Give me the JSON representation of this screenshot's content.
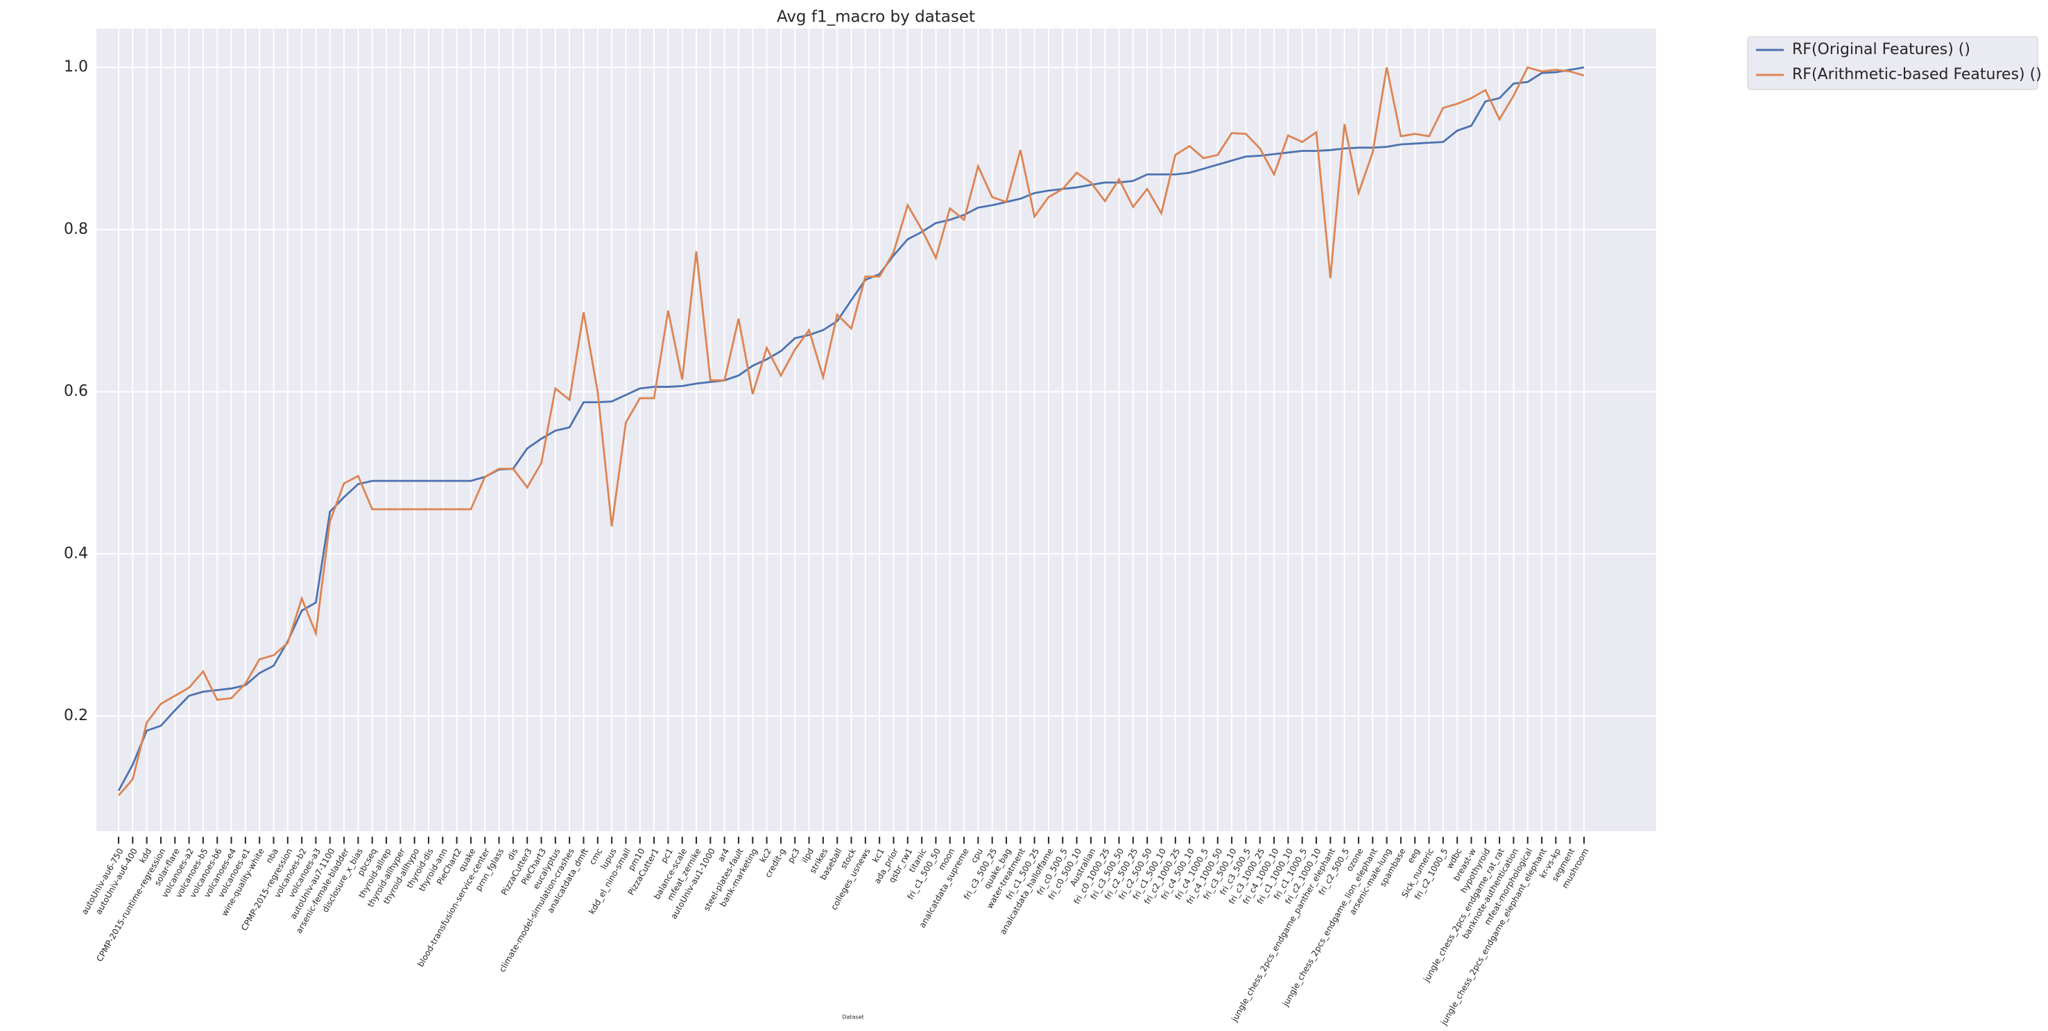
{
  "chart_data": {
    "type": "line",
    "title": "Avg f1_macro by dataset",
    "x_label": "Dataset",
    "categories": [
      "autoUniv-au6-750",
      "autoUniv-au6-400",
      "kdd",
      "CPMP-2015-runtime-regression",
      "solar-flare",
      "volcanoes-a2",
      "volcanoes-b5",
      "volcanoes-b6",
      "volcanoes-e4",
      "volcanoes-e1",
      "wine-quality-white",
      "nba",
      "CPMP-2015-regression",
      "volcanoes-b2",
      "volcanoes-a3",
      "autoUniv-au7-1100",
      "arsenic-female-bladder",
      "disclosure_x_bias",
      "pbcseq",
      "thyroid-allrep",
      "thyroid-allhyper",
      "thyroid-allhypo",
      "thyroid-dis",
      "thyroid-ann",
      "PieChart2",
      "quake",
      "blood-transfusion-service-center",
      "prnn_fglass",
      "dis",
      "PizzaCutter3",
      "PieChart3",
      "eucalyptus",
      "climate-model-simulation-crashes",
      "analcatdata_dmft",
      "cmc",
      "lupus",
      "kdd_el_nino-small",
      "pm10",
      "PizzaCutter1",
      "pc1",
      "balance-scale",
      "mfeat_zernike",
      "autoUniv-au1-1000",
      "ar4",
      "steel-plates-fault",
      "bank-marketing",
      "kc2",
      "credit-g",
      "pc3",
      "ilpd",
      "strikes",
      "baseball",
      "stock",
      "colleges_usnews",
      "kc1",
      "ada_prior",
      "qsbr_rw1",
      "titanic",
      "fri_c1_500_50",
      "moon",
      "analcatdata_supreme",
      "cpu",
      "fri_c3_500_25",
      "quake_bag",
      "water-treatment",
      "fri_c1_500_25",
      "analcatdata_halloffame",
      "fri_c0_500_5",
      "fri_c0_500_10",
      "Australian",
      "fri_c0_1000_25",
      "fri_c3_500_50",
      "fri_c2_500_25",
      "fri_c2_500_50",
      "fri_c1_500_10",
      "fri_c2_1000_25",
      "fri_c4_500_10",
      "fri_c4_1000_5",
      "fri_c4_1000_50",
      "fri_c3_500_10",
      "fri_c3_500_5",
      "fri_c3_1000_25",
      "fri_c4_1000_10",
      "fri_c1_1000_10",
      "fri_c1_1000_5",
      "fri_c2_1000_10",
      "jungle_chess_2pcs_endgame_panther_elephant",
      "fri_c2_500_5",
      "ozone",
      "jungle_chess_2pcs_endgame_lion_elephant",
      "arsenic-male-lung",
      "spambase",
      "eeg",
      "Sick_numeric",
      "fri_c2_1000_5",
      "wdbc",
      "breast-w",
      "hypothyroid",
      "jungle_chess_2pcs_endgame_rat_rat",
      "banknote-authentication",
      "mfeat-morphological",
      "jungle_chess_2pcs_endgame_elephant_elephant",
      "kr-vs-kp",
      "segment",
      "mushroom"
    ],
    "series": [
      {
        "name": "RF(Original Features) ()",
        "color": "#4c72b0",
        "values": [
          0.108,
          0.14,
          0.182,
          0.188,
          0.207,
          0.225,
          0.23,
          0.232,
          0.234,
          0.238,
          0.253,
          0.262,
          0.292,
          0.33,
          0.34,
          0.452,
          0.47,
          0.486,
          0.49,
          0.49,
          0.49,
          0.49,
          0.49,
          0.49,
          0.49,
          0.49,
          0.495,
          0.504,
          0.505,
          0.53,
          0.542,
          0.552,
          0.556,
          0.587,
          0.587,
          0.588,
          0.596,
          0.604,
          0.606,
          0.606,
          0.607,
          0.61,
          0.612,
          0.614,
          0.62,
          0.632,
          0.64,
          0.65,
          0.666,
          0.67,
          0.676,
          0.687,
          0.713,
          0.738,
          0.745,
          0.768,
          0.788,
          0.797,
          0.808,
          0.812,
          0.818,
          0.827,
          0.83,
          0.834,
          0.838,
          0.845,
          0.848,
          0.85,
          0.852,
          0.855,
          0.858,
          0.858,
          0.86,
          0.868,
          0.868,
          0.868,
          0.87,
          0.875,
          0.88,
          0.885,
          0.89,
          0.891,
          0.893,
          0.895,
          0.897,
          0.897,
          0.898,
          0.9,
          0.901,
          0.901,
          0.902,
          0.905,
          0.906,
          0.907,
          0.908,
          0.922,
          0.928,
          0.958,
          0.962,
          0.98,
          0.982,
          0.993,
          0.994,
          0.997,
          1.0
        ]
      },
      {
        "name": "RF(Arithmetic-based Features) ()",
        "color": "#dd8452",
        "values": [
          0.102,
          0.122,
          0.192,
          0.215,
          0.225,
          0.235,
          0.255,
          0.22,
          0.222,
          0.24,
          0.27,
          0.275,
          0.29,
          0.345,
          0.302,
          0.44,
          0.487,
          0.496,
          0.455,
          0.455,
          0.455,
          0.455,
          0.455,
          0.455,
          0.455,
          0.455,
          0.495,
          0.505,
          0.505,
          0.482,
          0.512,
          0.604,
          0.59,
          0.698,
          0.6,
          0.434,
          0.562,
          0.592,
          0.592,
          0.7,
          0.615,
          0.773,
          0.614,
          0.614,
          0.69,
          0.597,
          0.654,
          0.62,
          0.652,
          0.676,
          0.618,
          0.695,
          0.678,
          0.742,
          0.742,
          0.772,
          0.83,
          0.8,
          0.765,
          0.826,
          0.812,
          0.878,
          0.84,
          0.834,
          0.898,
          0.816,
          0.84,
          0.85,
          0.87,
          0.858,
          0.835,
          0.862,
          0.828,
          0.85,
          0.82,
          0.892,
          0.903,
          0.888,
          0.892,
          0.919,
          0.918,
          0.9,
          0.868,
          0.916,
          0.908,
          0.92,
          0.74,
          0.93,
          0.845,
          0.895,
          1.0,
          0.915,
          0.918,
          0.915,
          0.95,
          0.955,
          0.962,
          0.972,
          0.936,
          0.965,
          1.0,
          0.995,
          0.997,
          0.995,
          0.99
        ]
      }
    ],
    "ylim": [
      0.058,
      1.048
    ],
    "yticks": [
      0.2,
      0.4,
      0.6,
      0.8,
      {
        "value": 1.0,
        "label": "1.0"
      }
    ],
    "grid": true,
    "legend": "outside upper right"
  }
}
